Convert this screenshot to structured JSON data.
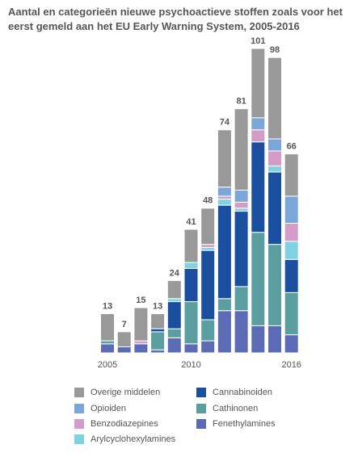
{
  "chart_data": {
    "type": "stacked-bar",
    "title": "Aantal en categorieën nieuwe psychoactieve stoffen zoals voor het eerst gemeld aan het EU Early Warning System, 2005-2016",
    "categories": [
      "2005",
      null,
      null,
      null,
      null,
      "2010",
      null,
      null,
      null,
      null,
      null,
      "2016"
    ],
    "totals": [
      13,
      7,
      15,
      13,
      24,
      41,
      48,
      74,
      81,
      101,
      98,
      66
    ],
    "series": [
      {
        "name": "Fenethylamines",
        "color": "#5b6bb5",
        "values": [
          3,
          2,
          3,
          1,
          5,
          3,
          4,
          14,
          14,
          9,
          9,
          6
        ]
      },
      {
        "name": "Cathinonen",
        "color": "#5b9ea0",
        "values": [
          1,
          0,
          0,
          6,
          3,
          14,
          7,
          4,
          8,
          31,
          27,
          14
        ]
      },
      {
        "name": "Cannabinoiden",
        "color": "#1a4fa0",
        "values": [
          0,
          0,
          0,
          1,
          9,
          11,
          23,
          31,
          25,
          30,
          24,
          11
        ]
      },
      {
        "name": "Arylcyclohexylamines",
        "color": "#7fd3e0",
        "values": [
          0,
          0,
          0,
          0,
          1,
          2,
          1,
          2,
          1,
          0,
          2,
          6
        ]
      },
      {
        "name": "Benzodiazepines",
        "color": "#d49cc8",
        "values": [
          0,
          0,
          1,
          0,
          0,
          0,
          1,
          1,
          2,
          4,
          5,
          6
        ]
      },
      {
        "name": "Opioiden",
        "color": "#7ba7d8",
        "values": [
          0,
          0,
          0,
          0,
          0,
          0,
          0,
          3,
          4,
          4,
          4,
          9
        ]
      },
      {
        "name": "Overige middelen",
        "color": "#999999",
        "values": [
          9,
          5,
          11,
          5,
          6,
          11,
          12,
          19,
          27,
          23,
          27,
          14
        ]
      }
    ]
  }
}
